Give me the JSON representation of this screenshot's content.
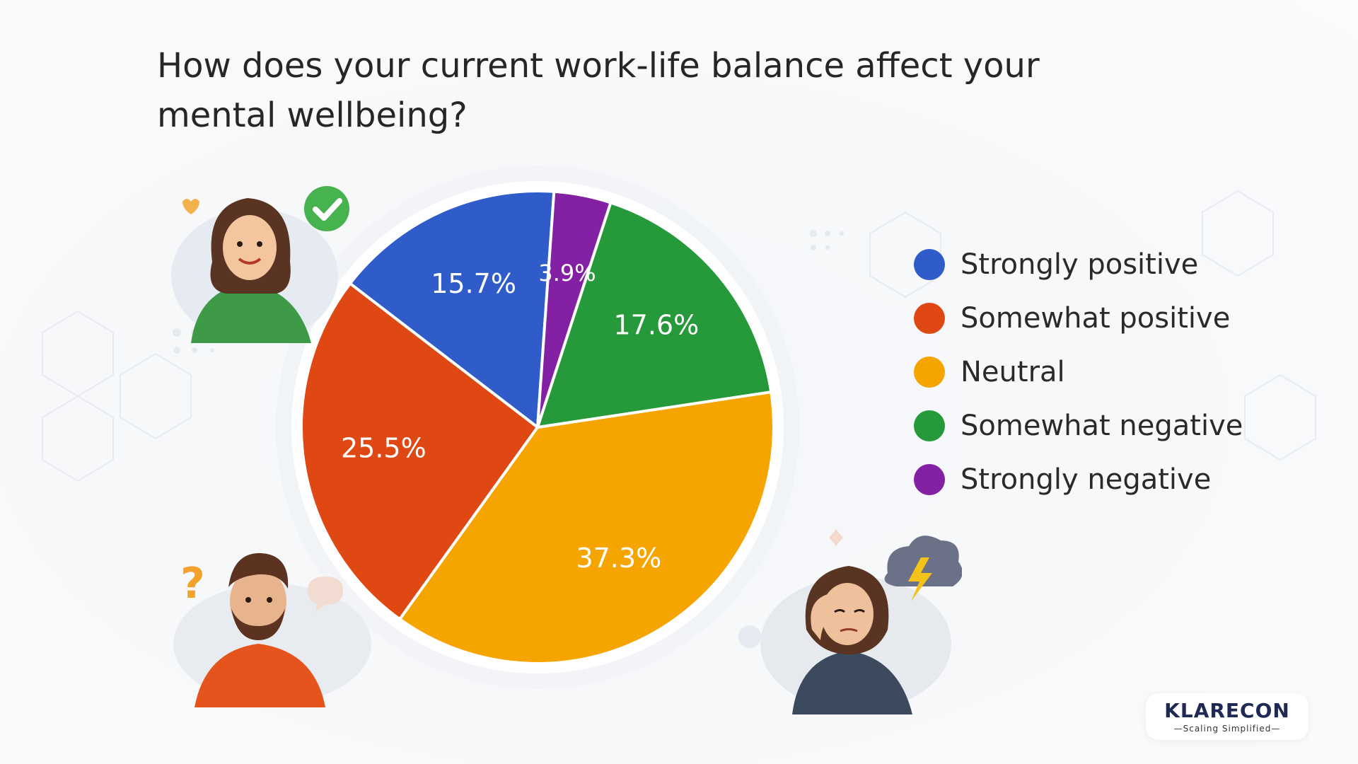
{
  "title": "How does your current work-life balance affect your mental wellbeing?",
  "chart_data": {
    "type": "pie",
    "title": "How does your current work-life balance affect your mental wellbeing?",
    "start_angle_deg": -86,
    "direction": "counterclockwise",
    "legend_position": "right",
    "slices": [
      {
        "label": "Strongly positive",
        "value": 15.7,
        "value_label": "15.7%",
        "color": "#2f5cc8"
      },
      {
        "label": "Somewhat positive",
        "value": 25.5,
        "value_label": "25.5%",
        "color": "#e04813"
      },
      {
        "label": "Neutral",
        "value": 37.3,
        "value_label": "37.3%",
        "color": "#f6a500"
      },
      {
        "label": "Somewhat negative",
        "value": 17.6,
        "value_label": "17.6%",
        "color": "#26993a"
      },
      {
        "label": "Strongly negative",
        "value": 3.9,
        "value_label": "3.9%",
        "color": "#8420a4"
      }
    ]
  },
  "legend": {
    "items": [
      {
        "label": "Strongly positive",
        "color": "#2f5cc8"
      },
      {
        "label": "Somewhat positive",
        "color": "#e04813"
      },
      {
        "label": "Neutral",
        "color": "#f6a500"
      },
      {
        "label": "Somewhat negative",
        "color": "#26993a"
      },
      {
        "label": "Strongly negative",
        "color": "#8420a4"
      }
    ]
  },
  "brand": {
    "name": "KLARECON",
    "tagline": "—Scaling Simplified—"
  },
  "icons": {
    "check": "check-circle-icon",
    "question": "question-mark-icon",
    "lightning": "lightning-cloud-icon"
  }
}
